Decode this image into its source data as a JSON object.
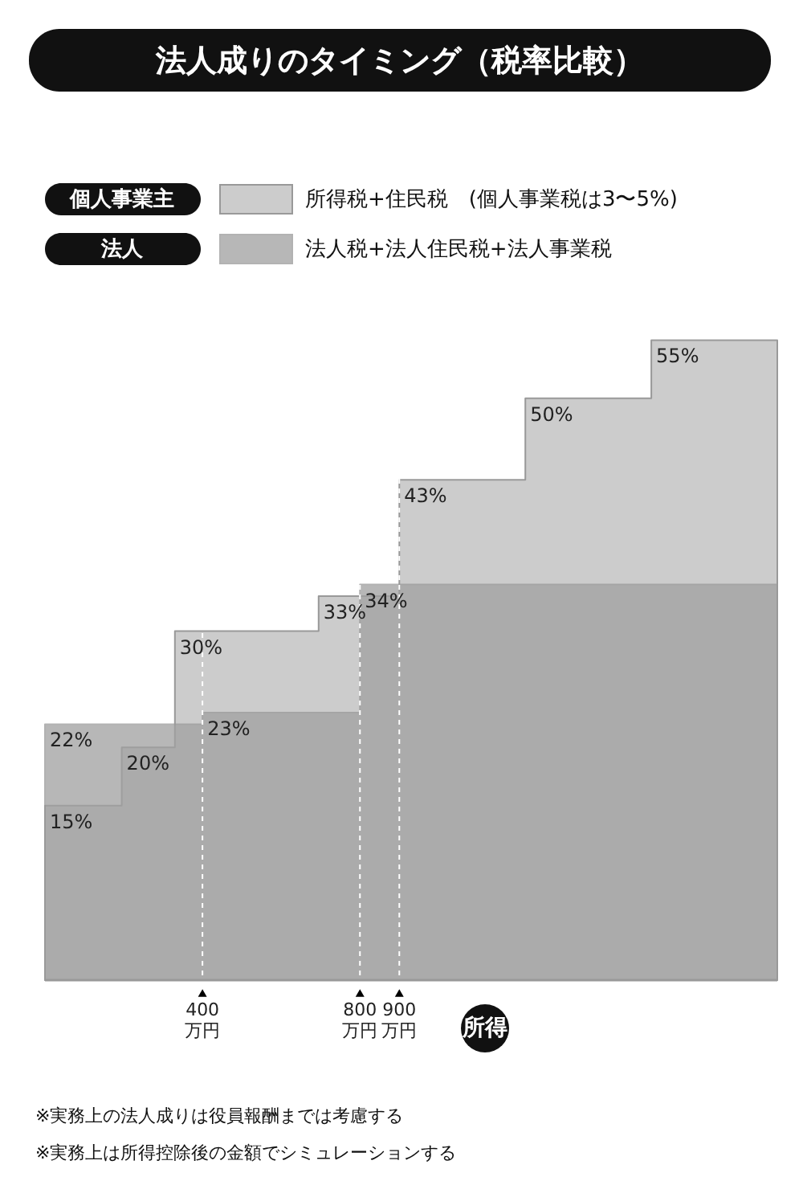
{
  "chart_data": {
    "type": "area",
    "title": "法人成りのタイミング（税率比較）",
    "xlabel": "所得",
    "xlim": [
      0,
      1860
    ],
    "xticks": [
      {
        "value": 400,
        "label": "400\n万円"
      },
      {
        "value": 800,
        "label": "800\n万円"
      },
      {
        "value": 900,
        "label": "900\n万円"
      }
    ],
    "ylim": [
      0,
      58
    ],
    "tick_labels": "x",
    "grid": "x",
    "legend": "top",
    "series": [
      {
        "name": "所得税+住民税　(個人事業税は3〜5%)",
        "color": "#cccccc",
        "x": [
          0,
          195,
          330,
          695,
          900,
          1220,
          1540,
          1860
        ],
        "values": [
          15,
          20,
          30,
          33,
          43,
          50,
          55,
          55
        ],
        "value_labels": [
          "15%",
          "20%",
          "30%",
          "33%",
          "43%",
          "50%",
          "55%",
          null
        ]
      },
      {
        "name": "法人税+法人住民税+法人事業税",
        "color": "#a0a0a0",
        "x": [
          0,
          400,
          800,
          1860
        ],
        "values": [
          22,
          23,
          34,
          34
        ],
        "value_labels": [
          "22%",
          "23%",
          "34%",
          null
        ]
      }
    ],
    "annotations": [
      "個人事業主",
      "法人",
      "※実務上の法人成りは役員報酬までは考慮する",
      "※実務上は所得控除後の金額でシミュレーションする"
    ]
  }
}
